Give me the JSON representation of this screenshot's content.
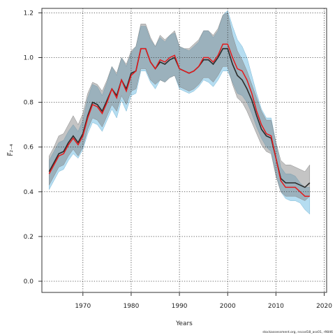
{
  "chart_data": {
    "type": "area",
    "xlabel": "Years",
    "ylabel": "F̅₂₋₄",
    "xlim": [
      1961.5,
      2020.5
    ],
    "ylim": [
      -0.05,
      1.22
    ],
    "xticks": [
      1970,
      1980,
      1990,
      2000,
      2010,
      2020
    ],
    "yticks": [
      0.0,
      0.2,
      0.4,
      0.6,
      0.8,
      1.0,
      1.2
    ],
    "grid": true,
    "x": [
      1963,
      1964,
      1965,
      1966,
      1967,
      1968,
      1969,
      1970,
      1971,
      1972,
      1973,
      1974,
      1975,
      1976,
      1977,
      1978,
      1979,
      1980,
      1981,
      1982,
      1983,
      1984,
      1985,
      1986,
      1987,
      1988,
      1989,
      1990,
      1991,
      1992,
      1993,
      1994,
      1995,
      1996,
      1997,
      1998,
      1999,
      2000,
      2001,
      2002,
      2003,
      2004,
      2005,
      2006,
      2007,
      2008,
      2009,
      2010,
      2011,
      2012,
      2013,
      2014,
      2015,
      2016,
      2017
    ],
    "series": [
      {
        "color": "#e41a1c",
        "values": [
          0.48,
          0.52,
          0.56,
          0.57,
          0.61,
          0.64,
          0.61,
          0.65,
          0.73,
          0.79,
          0.78,
          0.75,
          0.8,
          0.86,
          0.82,
          0.9,
          0.85,
          0.92,
          0.94,
          1.04,
          1.04,
          0.98,
          0.95,
          0.99,
          0.98,
          1.0,
          1.01,
          0.95,
          0.94,
          0.93,
          0.94,
          0.96,
          1.0,
          1.0,
          0.98,
          1.01,
          1.06,
          1.06,
          1.0,
          0.95,
          0.94,
          0.9,
          0.84,
          0.76,
          0.7,
          0.66,
          0.65,
          0.55,
          0.45,
          0.42,
          0.42,
          0.42,
          0.4,
          0.38,
          0.38
        ],
        "upper": [
          0.54,
          0.58,
          0.62,
          0.63,
          0.67,
          0.7,
          0.67,
          0.72,
          0.82,
          0.88,
          0.87,
          0.83,
          0.89,
          0.96,
          0.92,
          1.0,
          0.96,
          1.02,
          1.05,
          1.14,
          1.14,
          1.08,
          1.05,
          1.09,
          1.07,
          1.1,
          1.11,
          1.05,
          1.04,
          1.03,
          1.05,
          1.07,
          1.12,
          1.12,
          1.09,
          1.12,
          1.19,
          1.21,
          1.14,
          1.08,
          1.05,
          1.0,
          0.92,
          0.84,
          0.77,
          0.73,
          0.73,
          0.62,
          0.51,
          0.48,
          0.48,
          0.47,
          0.44,
          0.42,
          0.42
        ],
        "lower": [
          0.41,
          0.45,
          0.49,
          0.5,
          0.54,
          0.57,
          0.55,
          0.59,
          0.66,
          0.71,
          0.7,
          0.67,
          0.72,
          0.77,
          0.73,
          0.81,
          0.76,
          0.83,
          0.84,
          0.94,
          0.94,
          0.89,
          0.86,
          0.9,
          0.89,
          0.91,
          0.92,
          0.86,
          0.85,
          0.84,
          0.85,
          0.87,
          0.9,
          0.89,
          0.87,
          0.9,
          0.94,
          0.94,
          0.89,
          0.84,
          0.83,
          0.8,
          0.75,
          0.69,
          0.64,
          0.6,
          0.58,
          0.48,
          0.4,
          0.37,
          0.36,
          0.36,
          0.35,
          0.32,
          0.3
        ]
      },
      {
        "color": "#2b2b2b",
        "values": [
          0.49,
          0.53,
          0.57,
          0.58,
          0.62,
          0.65,
          0.62,
          0.66,
          0.74,
          0.8,
          0.79,
          0.76,
          0.81,
          0.86,
          0.83,
          0.9,
          0.86,
          0.93,
          0.94,
          1.04,
          1.04,
          0.98,
          0.95,
          0.98,
          0.97,
          0.99,
          1.0,
          0.95,
          0.94,
          0.93,
          0.94,
          0.96,
          0.99,
          0.99,
          0.97,
          1.0,
          1.04,
          1.04,
          0.97,
          0.92,
          0.9,
          0.86,
          0.81,
          0.74,
          0.68,
          0.65,
          0.64,
          0.55,
          0.46,
          0.44,
          0.44,
          0.44,
          0.43,
          0.42,
          0.44
        ],
        "upper": [
          0.56,
          0.6,
          0.65,
          0.66,
          0.7,
          0.74,
          0.7,
          0.75,
          0.84,
          0.89,
          0.88,
          0.85,
          0.9,
          0.96,
          0.93,
          1.0,
          0.97,
          1.03,
          1.05,
          1.15,
          1.15,
          1.09,
          1.05,
          1.1,
          1.08,
          1.1,
          1.12,
          1.05,
          1.04,
          1.04,
          1.06,
          1.08,
          1.12,
          1.12,
          1.1,
          1.13,
          1.19,
          1.2,
          1.1,
          1.03,
          0.99,
          0.94,
          0.88,
          0.82,
          0.76,
          0.72,
          0.72,
          0.62,
          0.54,
          0.52,
          0.52,
          0.51,
          0.5,
          0.49,
          0.52
        ],
        "lower": [
          0.43,
          0.47,
          0.51,
          0.52,
          0.56,
          0.59,
          0.56,
          0.6,
          0.68,
          0.73,
          0.72,
          0.69,
          0.74,
          0.79,
          0.76,
          0.83,
          0.79,
          0.85,
          0.86,
          0.95,
          0.95,
          0.9,
          0.88,
          0.9,
          0.89,
          0.91,
          0.92,
          0.87,
          0.86,
          0.85,
          0.86,
          0.88,
          0.91,
          0.91,
          0.89,
          0.92,
          0.96,
          0.96,
          0.88,
          0.82,
          0.8,
          0.76,
          0.71,
          0.66,
          0.61,
          0.58,
          0.57,
          0.47,
          0.4,
          0.38,
          0.38,
          0.38,
          0.37,
          0.36,
          0.38
        ]
      }
    ]
  },
  "footer": {
    "note": "stockassessment.org, nscod18_ass01, r9846"
  }
}
